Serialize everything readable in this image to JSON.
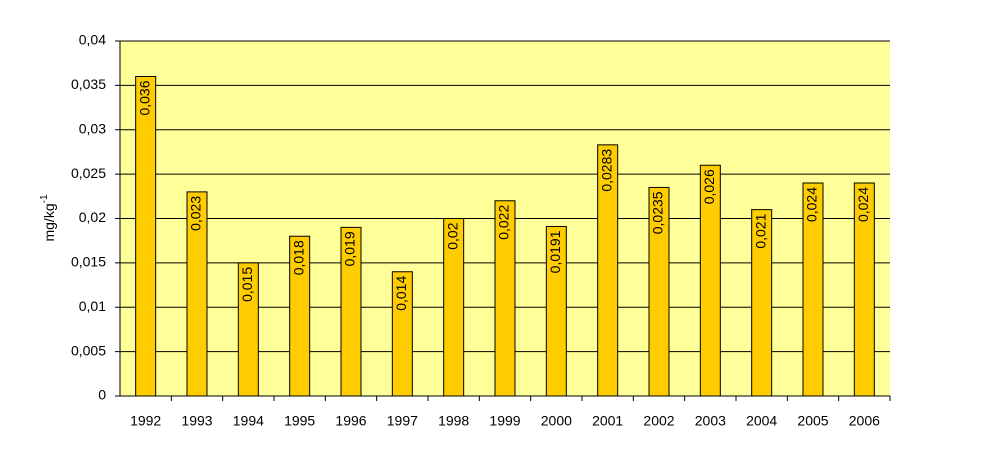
{
  "chart_data": {
    "type": "bar",
    "y_label": {
      "text": "mg/kg",
      "superscript": "-1"
    },
    "categories": [
      "1992",
      "1993",
      "1994",
      "1995",
      "1996",
      "1997",
      "1998",
      "1999",
      "2000",
      "2001",
      "2002",
      "2003",
      "2004",
      "2005",
      "2006"
    ],
    "values": [
      0.036,
      0.023,
      0.015,
      0.018,
      0.019,
      0.014,
      0.02,
      0.022,
      0.0191,
      0.0283,
      0.0235,
      0.026,
      0.021,
      0.024,
      0.024
    ],
    "value_labels": [
      "0,036",
      "0,023",
      "0,015",
      "0,018",
      "0,019",
      "0,014",
      "0,02",
      "0,022",
      "0,0191",
      "0,0283",
      "0,0235",
      "0,026",
      "0,021",
      "0,024",
      "0,024"
    ],
    "color": "#ffcc00",
    "plot_background": "#ffff99",
    "ylim": [
      0,
      0.04
    ],
    "yticks": [
      0,
      {
        "value": 0.005,
        "label": "0,005"
      },
      {
        "value": 0.01,
        "label": "0,01"
      },
      {
        "value": 0.015,
        "label": "0,015"
      },
      {
        "value": 0.02,
        "label": "0,02"
      },
      {
        "value": 0.025,
        "label": "0,025"
      },
      {
        "value": 0.03,
        "label": "0,03"
      },
      {
        "value": 0.035,
        "label": "0,035"
      },
      {
        "value": 0.04,
        "label": "0,04"
      }
    ],
    "grid": true
  }
}
